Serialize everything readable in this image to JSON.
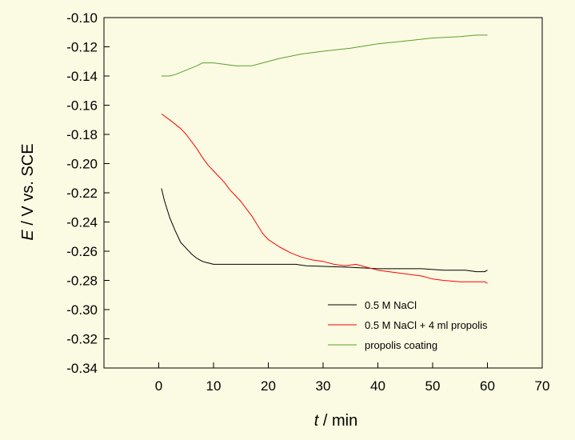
{
  "chart_data": {
    "type": "line",
    "title": "",
    "xlabel": {
      "italic": "t",
      "rest": " / min"
    },
    "ylabel": {
      "italic": "E",
      "rest": " / V vs. SCE"
    },
    "xlim": [
      -10,
      70
    ],
    "ylim": [
      -0.34,
      -0.1
    ],
    "x_ticks": [
      0,
      10,
      20,
      30,
      40,
      50,
      60,
      70
    ],
    "y_ticks": [
      -0.34,
      -0.32,
      -0.3,
      -0.28,
      -0.26,
      -0.24,
      -0.22,
      -0.2,
      -0.18,
      -0.16,
      -0.14,
      -0.12,
      -0.1
    ],
    "grid": false,
    "legend_position": "bottom-right",
    "series": [
      {
        "name": "0.5 M NaCl",
        "color": "#000000",
        "points": [
          [
            0.5,
            -0.217
          ],
          [
            1,
            -0.225
          ],
          [
            2,
            -0.237
          ],
          [
            3,
            -0.246
          ],
          [
            4,
            -0.254
          ],
          [
            5,
            -0.258
          ],
          [
            6,
            -0.262
          ],
          [
            7,
            -0.265
          ],
          [
            8,
            -0.267
          ],
          [
            9,
            -0.268
          ],
          [
            10,
            -0.269
          ],
          [
            15,
            -0.269
          ],
          [
            20,
            -0.269
          ],
          [
            25,
            -0.269
          ],
          [
            27,
            -0.27
          ],
          [
            35,
            -0.271
          ],
          [
            40,
            -0.272
          ],
          [
            48,
            -0.272
          ],
          [
            52,
            -0.273
          ],
          [
            56,
            -0.273
          ],
          [
            58,
            -0.274
          ],
          [
            59.5,
            -0.274
          ],
          [
            60,
            -0.273
          ]
        ]
      },
      {
        "name": "0.5 M NaCl + 4 ml propolis",
        "color": "#ff0000",
        "points": [
          [
            0.5,
            -0.166
          ],
          [
            2,
            -0.17
          ],
          [
            4,
            -0.176
          ],
          [
            5,
            -0.18
          ],
          [
            6,
            -0.185
          ],
          [
            7,
            -0.19
          ],
          [
            8,
            -0.196
          ],
          [
            9,
            -0.201
          ],
          [
            10,
            -0.205
          ],
          [
            11,
            -0.209
          ],
          [
            12,
            -0.213
          ],
          [
            13,
            -0.218
          ],
          [
            14,
            -0.222
          ],
          [
            15,
            -0.226
          ],
          [
            16,
            -0.231
          ],
          [
            17,
            -0.236
          ],
          [
            18,
            -0.242
          ],
          [
            19,
            -0.248
          ],
          [
            20,
            -0.252
          ],
          [
            22,
            -0.257
          ],
          [
            24,
            -0.261
          ],
          [
            26,
            -0.264
          ],
          [
            28,
            -0.266
          ],
          [
            30,
            -0.267
          ],
          [
            32,
            -0.269
          ],
          [
            34,
            -0.27
          ],
          [
            36,
            -0.269
          ],
          [
            38,
            -0.271
          ],
          [
            40,
            -0.273
          ],
          [
            42,
            -0.274
          ],
          [
            44,
            -0.275
          ],
          [
            46,
            -0.276
          ],
          [
            48,
            -0.277
          ],
          [
            50,
            -0.279
          ],
          [
            52,
            -0.28
          ],
          [
            55,
            -0.281
          ],
          [
            58,
            -0.281
          ],
          [
            59.5,
            -0.281
          ],
          [
            60,
            -0.282
          ]
        ]
      },
      {
        "name": "propolis coating",
        "color": "#5aa02c",
        "points": [
          [
            0.5,
            -0.14
          ],
          [
            2,
            -0.14
          ],
          [
            3,
            -0.139
          ],
          [
            5,
            -0.136
          ],
          [
            7,
            -0.133
          ],
          [
            8,
            -0.131
          ],
          [
            10,
            -0.131
          ],
          [
            12,
            -0.132
          ],
          [
            14,
            -0.133
          ],
          [
            17,
            -0.133
          ],
          [
            19,
            -0.131
          ],
          [
            22,
            -0.128
          ],
          [
            26,
            -0.125
          ],
          [
            30,
            -0.123
          ],
          [
            35,
            -0.121
          ],
          [
            40,
            -0.118
          ],
          [
            45,
            -0.116
          ],
          [
            50,
            -0.114
          ],
          [
            55,
            -0.113
          ],
          [
            58,
            -0.112
          ],
          [
            60,
            -0.112
          ]
        ]
      }
    ]
  }
}
